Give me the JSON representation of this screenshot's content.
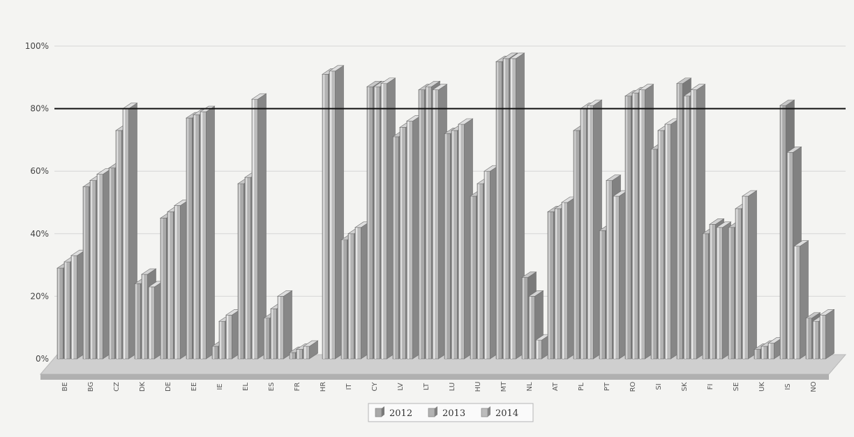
{
  "chart_data": {
    "type": "bar",
    "style": "3d-clustered-column",
    "title": "",
    "xlabel": "",
    "ylabel": "",
    "ylim": [
      0,
      100
    ],
    "yticks": [
      "0%",
      "20%",
      "40%",
      "60%",
      "80%",
      "100%"
    ],
    "reference_line": {
      "value": 80
    },
    "grid": true,
    "legend_position": "bottom-center",
    "categories": [
      "BE",
      "BG",
      "CZ",
      "DK",
      "DE",
      "EE",
      "IE",
      "EL",
      "ES",
      "FR",
      "HR",
      "IT",
      "CY",
      "LV",
      "LT",
      "LU",
      "HU",
      "MT",
      "NL",
      "AT",
      "PL",
      "PT",
      "RO",
      "SI",
      "SK",
      "FI",
      "SE",
      "UK",
      "IS",
      "NO"
    ],
    "series": [
      {
        "name": "2012",
        "color": "#a9a9a9",
        "values": [
          29,
          55,
          61,
          24,
          45,
          77,
          4,
          56,
          13,
          2,
          0,
          38,
          87,
          71,
          86,
          72,
          52,
          95,
          26,
          47,
          73,
          41,
          84,
          67,
          88,
          40,
          42,
          3,
          81,
          13
        ]
      },
      {
        "name": "2013",
        "color": "#b3b3b3",
        "values": [
          31,
          57,
          73,
          27,
          47,
          78,
          12,
          58,
          16,
          3,
          91,
          40,
          87,
          74,
          87,
          73,
          56,
          96,
          20,
          48,
          80,
          57,
          85,
          73,
          84,
          43,
          48,
          4,
          66,
          12
        ]
      },
      {
        "name": "2014",
        "color": "#bcbcbc",
        "values": [
          33,
          59,
          80,
          23,
          49,
          79,
          14,
          83,
          20,
          4,
          92,
          42,
          88,
          76,
          86,
          75,
          60,
          96,
          6,
          50,
          81,
          52,
          86,
          75,
          86,
          42,
          52,
          5,
          36,
          14
        ]
      }
    ]
  }
}
